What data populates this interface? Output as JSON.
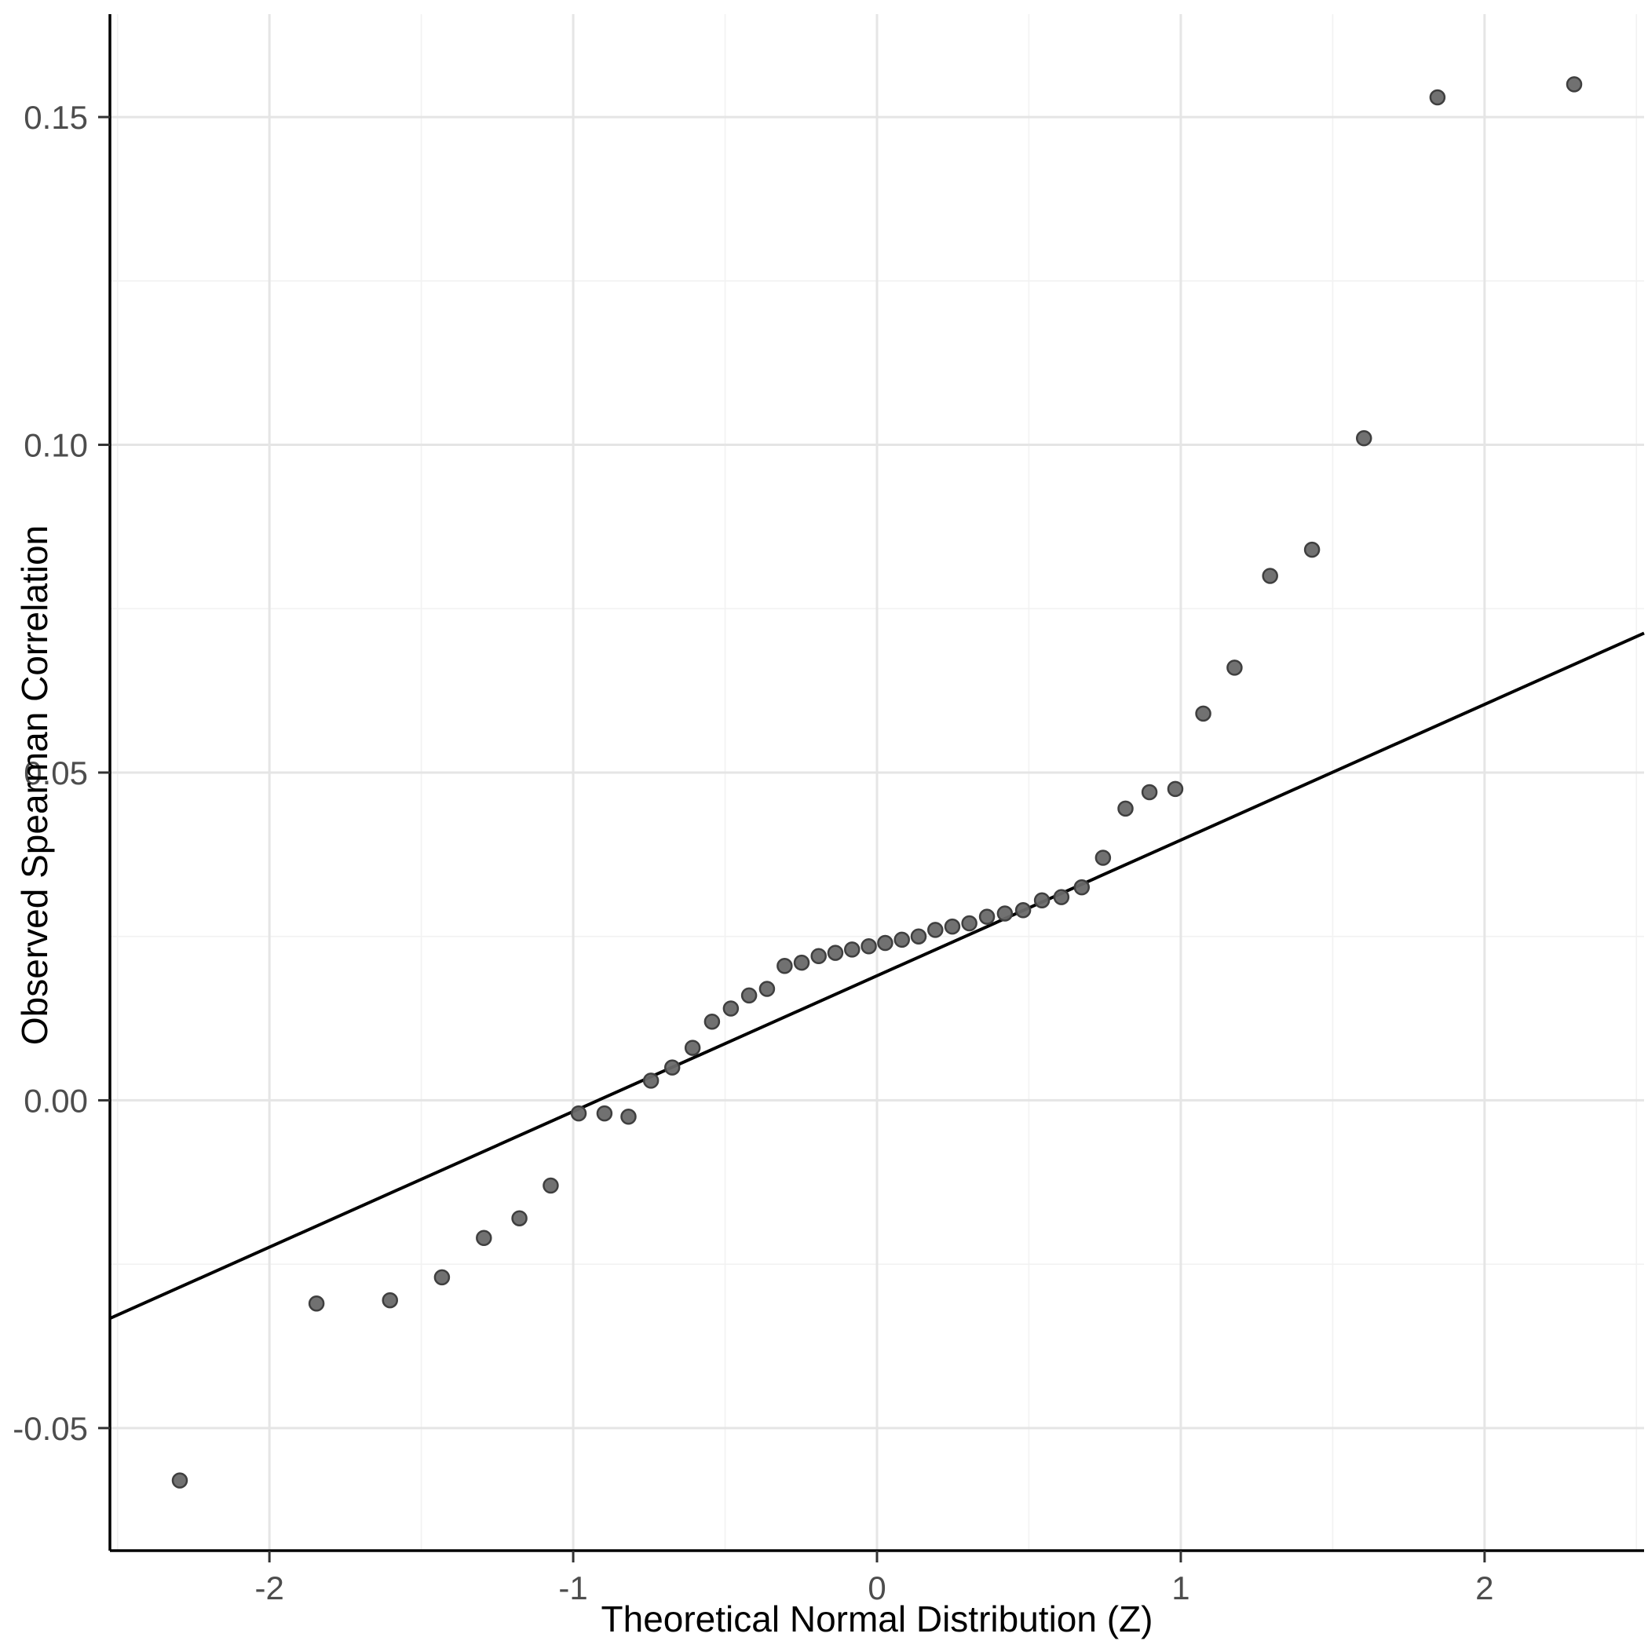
{
  "chart_data": {
    "type": "scatter",
    "title": "",
    "xlabel": "Theoretical Normal Distribution (Z)",
    "ylabel": "Observed Spearman Correlation",
    "xlim": [
      -2.525,
      2.525
    ],
    "ylim": [
      -0.0687,
      0.1657
    ],
    "x_ticks": [
      -2,
      -1,
      0,
      1,
      2
    ],
    "x_tick_labels": [
      "-2",
      "-1",
      "0",
      "1",
      "2"
    ],
    "y_ticks": [
      -0.05,
      0,
      0.05,
      0.1,
      0.15
    ],
    "y_tick_labels": [
      "-0.05",
      "0.00",
      "0.05",
      "0.10",
      "0.15"
    ],
    "x_minor_ticks": [
      -2.5,
      -1.5,
      -0.5,
      0.5,
      1.5,
      2.5
    ],
    "y_minor_ticks": [
      -0.025,
      0.025,
      0.075,
      0.125
    ],
    "grid": true,
    "legend": false,
    "points": [
      [
        -2.295,
        -0.058
      ],
      [
        -1.845,
        -0.031
      ],
      [
        -1.603,
        -0.0305
      ],
      [
        -1.432,
        -0.027
      ],
      [
        -1.294,
        -0.021
      ],
      [
        -1.177,
        -0.018
      ],
      [
        -1.074,
        -0.013
      ],
      [
        -0.982,
        -0.002
      ],
      [
        -0.897,
        -0.002
      ],
      [
        -0.818,
        -0.0025
      ],
      [
        -0.744,
        0.003
      ],
      [
        -0.674,
        0.005
      ],
      [
        -0.607,
        0.008
      ],
      [
        -0.543,
        0.012
      ],
      [
        -0.481,
        0.014
      ],
      [
        -0.421,
        0.016
      ],
      [
        -0.362,
        0.017
      ],
      [
        -0.304,
        0.0205
      ],
      [
        -0.248,
        0.021
      ],
      [
        -0.192,
        0.022
      ],
      [
        -0.137,
        0.0225
      ],
      [
        -0.082,
        0.023
      ],
      [
        -0.027,
        0.0235
      ],
      [
        0.027,
        0.024
      ],
      [
        0.082,
        0.0245
      ],
      [
        0.137,
        0.025
      ],
      [
        0.192,
        0.026
      ],
      [
        0.248,
        0.0265
      ],
      [
        0.304,
        0.027
      ],
      [
        0.362,
        0.028
      ],
      [
        0.421,
        0.0285
      ],
      [
        0.481,
        0.029
      ],
      [
        0.543,
        0.0305
      ],
      [
        0.607,
        0.031
      ],
      [
        0.674,
        0.0325
      ],
      [
        0.744,
        0.037
      ],
      [
        0.818,
        0.0445
      ],
      [
        0.897,
        0.047
      ],
      [
        0.982,
        0.0475
      ],
      [
        1.074,
        0.059
      ],
      [
        1.177,
        0.066
      ],
      [
        1.294,
        0.08
      ],
      [
        1.432,
        0.084
      ],
      [
        1.603,
        0.101
      ],
      [
        1.845,
        0.153
      ],
      [
        2.295,
        0.155
      ]
    ],
    "reference_line": {
      "slope": 0.0207,
      "intercept": 0.019
    },
    "point_color": "#696969",
    "point_stroke": "#3f3f3f",
    "line_color": "#000000",
    "grid_major_color": "#e5e5e5",
    "grid_minor_color": "#f2f2f2",
    "axis_color": "#000000",
    "tick_label_color": "#4d4d4d"
  }
}
